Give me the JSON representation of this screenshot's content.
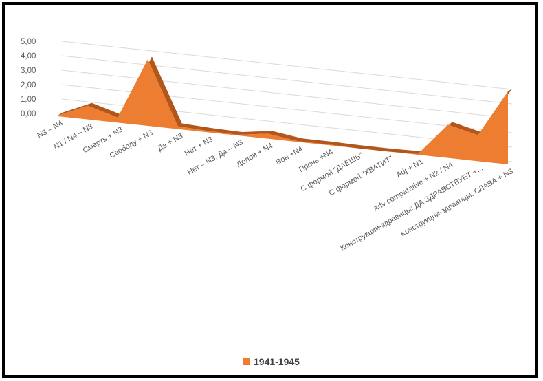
{
  "chart_data": {
    "type": "area",
    "categories": [
      "N3 – N4",
      "N1 / N4 – N3",
      "Смерть + N3",
      "Свободу + N3",
      "Да + N3",
      "Нет + N3",
      "Нет – N3, Да – N3",
      "Долой + N4",
      "Вон +N4",
      "Прочь +N4",
      "С формой \"ДАЁШЬ\"",
      "С формой \"ХВАТИТ\"",
      "Adj + N1",
      "Adv comparative + N2 / N4",
      "Конструкции-здравицы: ДА ЗДРАВСТВУЕТ +...",
      "Конструкции-здравицы: СЛАВА + N3"
    ],
    "series": [
      {
        "name": "1941-1945",
        "values": [
          0.05,
          0.95,
          0.35,
          4.6,
          0.2,
          0.1,
          0.05,
          0.35,
          0.05,
          0.05,
          0.0,
          0.0,
          0.05,
          2.3,
          1.8,
          5.05
        ]
      }
    ],
    "y_ticks": [
      "0,00",
      "1,00",
      "2,00",
      "3,00",
      "4,00",
      "5,00"
    ],
    "ylim": [
      0,
      5
    ],
    "grid": true,
    "legend_position": "bottom",
    "colors": {
      "area": "#ED7D31",
      "area_dark": "#B3561C",
      "grid": "#D9D9D9",
      "text": "#595959"
    }
  },
  "legend": {
    "label": "1941-1945"
  }
}
